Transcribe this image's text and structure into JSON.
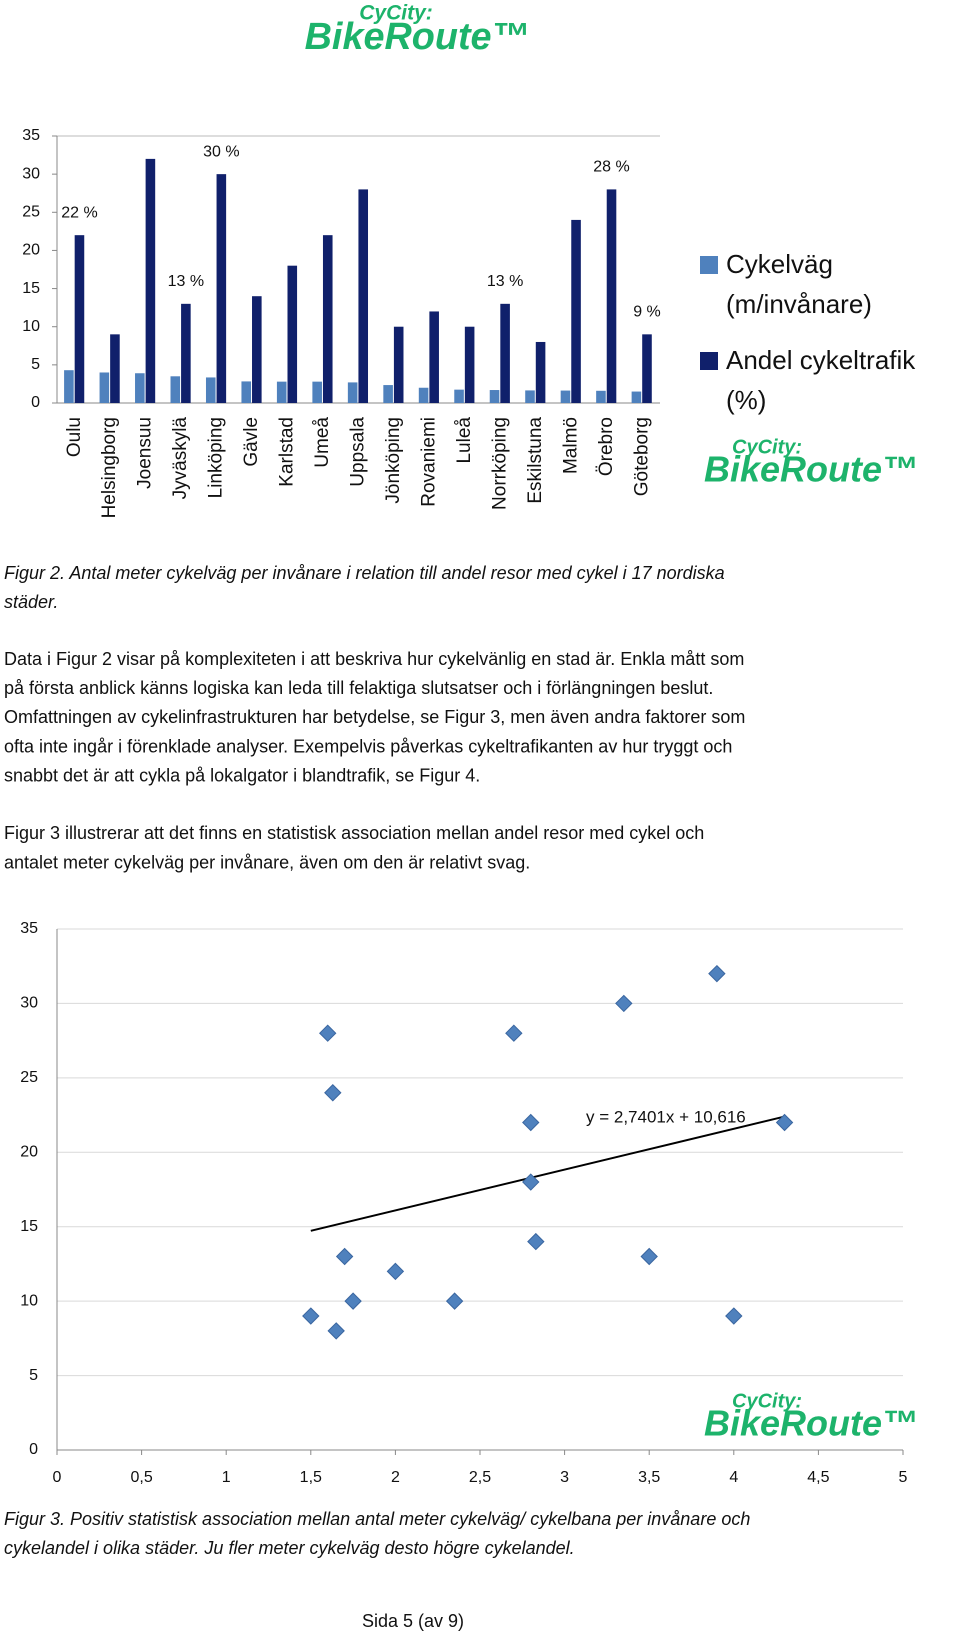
{
  "logo": {
    "small": "CyCity:",
    "large": "BikeRoute™"
  },
  "chart_data": [
    {
      "type": "bar",
      "categories": [
        "Oulu",
        "Helsingborg",
        "Joensuu",
        "Jyväskylä",
        "Linköping",
        "Gävle",
        "Karlstad",
        "Umeå",
        "Uppsala",
        "Jönköping",
        "Rovaniemi",
        "Luleå",
        "Norrköping",
        "Eskilstuna",
        "Malmö",
        "Örebro",
        "Göteborg"
      ],
      "series": [
        {
          "name": "Cykelväg (m/invånare)",
          "color": "#4f81bd",
          "values": [
            4.3,
            4.0,
            3.9,
            3.5,
            3.35,
            2.83,
            2.8,
            2.8,
            2.7,
            2.35,
            2.0,
            1.75,
            1.7,
            1.65,
            1.63,
            1.6,
            1.5
          ]
        },
        {
          "name": "Andel cykeltrafik (%)",
          "color": "#10206b",
          "values": [
            22,
            9,
            32,
            13,
            30,
            14,
            18,
            22,
            28,
            10,
            12,
            10,
            13,
            8,
            24,
            28,
            9
          ],
          "value_labels": [
            "22 %",
            null,
            null,
            "13 %",
            "30 %",
            null,
            null,
            null,
            null,
            null,
            null,
            null,
            "13 %",
            null,
            null,
            "28 %",
            "9 %"
          ]
        }
      ],
      "ylim": [
        0,
        35
      ],
      "yticks": [
        0,
        5,
        10,
        15,
        20,
        25,
        30,
        35
      ],
      "grid": false,
      "legend": "right"
    },
    {
      "type": "scatter",
      "color": "#4f81bd",
      "x": [
        4.3,
        4.0,
        3.9,
        3.5,
        3.35,
        2.83,
        2.8,
        2.8,
        2.7,
        2.35,
        2.0,
        1.75,
        1.7,
        1.65,
        1.63,
        1.6,
        1.5
      ],
      "values": [
        22,
        9,
        32,
        13,
        30,
        14,
        18,
        22,
        28,
        10,
        12,
        10,
        13,
        8,
        24,
        28,
        9
      ],
      "xlim": [
        0,
        5
      ],
      "xticks": [
        0,
        {
          "value": 0.5,
          "label": "0,5"
        },
        1,
        {
          "value": 1.5,
          "label": "1,5"
        },
        2,
        {
          "value": 2.5,
          "label": "2,5"
        },
        3,
        {
          "value": 3.5,
          "label": "3,5"
        },
        4,
        {
          "value": 4.5,
          "label": "4,5"
        },
        5
      ],
      "ylim": [
        0,
        35
      ],
      "yticks": [
        0,
        5,
        10,
        15,
        20,
        25,
        30,
        35
      ],
      "grid": true,
      "trendline": {
        "slope": 2.7401,
        "intercept": 10.616,
        "label": "y = 2,7401x + 10,616"
      }
    }
  ],
  "figure2_caption": [
    "Figur 2. Antal meter cykelväg per invånare i relation till andel resor med cykel i 17 nordiska",
    "städer."
  ],
  "paragraph1": [
    "Data i Figur 2 visar på komplexiteten i att beskriva hur cykelvänlig en stad är. Enkla mått som",
    "på första anblick känns logiska kan leda till felaktiga slutsatser och i förlängningen beslut.",
    "Omfattningen av cykelinfrastrukturen har betydelse, se Figur 3, men även andra faktorer som",
    "ofta inte ingår i förenklade analyser. Exempelvis påverkas cykeltrafikanten av hur tryggt och",
    "snabbt det är att cykla på lokalgator i blandtrafik, se Figur 4."
  ],
  "paragraph2": [
    "Figur 3 illustrerar att det finns en statistisk association mellan andel resor med cykel och",
    "antalet meter cykelväg per invånare, även om den är relativt svag."
  ],
  "figure3_caption": [
    "Figur 3. Positiv statistisk association mellan antal meter cykelväg/ cykelbana per invånare och",
    "cykelandel i olika städer. Ju fler meter cykelväg desto högre cykelandel."
  ],
  "footer": "Sida 5 (av 9)"
}
